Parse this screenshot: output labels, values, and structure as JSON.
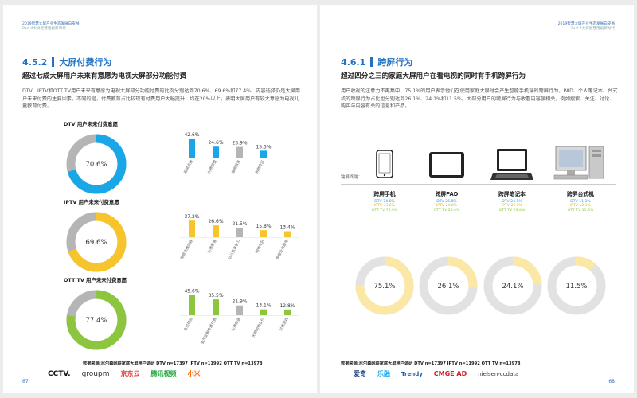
{
  "colors": {
    "blue": "#1aa7e8",
    "yellow": "#f7c52b",
    "green": "#8cc63f",
    "grey": "#b5b5b5",
    "lightgrey": "#e2e2e2",
    "paleyellow": "#fbe7a6",
    "title_blue": "#1f73c2"
  },
  "left": {
    "header_line1": "2019智慧大屏产业生态发展白皮书",
    "header_line2": "Part 4大屏智慧电视新时代",
    "section_num": "4.5.2",
    "section_title": "大屏付费行为",
    "subtitle": "超过七成大屏用户未来有意愿为电视大屏部分功能付费",
    "body": "DTV、IPTV和OTT TV用户未来有意愿为电视大屏部分功能付费的比例分别达到70.6%、69.6%和77.4%。内容选择仍是大屏用户未来付费的主要因素，不同的是，付费教育占比较现有付费用户大幅提升，均在20%以上，表明大屏用户有较大意愿为电视儿童教育付费。",
    "source": "数据来源:尼尔森网联家庭大屏用户调研  DTV n=17397  IPTV n=11992  OTT TV n=13978",
    "page_number": "67",
    "logos": [
      "CCTV.",
      "groupm",
      "京东云",
      "腾讯视频",
      "小米"
    ]
  },
  "chart_data": [
    {
      "type": "pie",
      "title": "DTV 用户未来付费意愿",
      "values": [
        70.6,
        29.4
      ],
      "label": "70.6%",
      "color": "#1aa7e8"
    },
    {
      "type": "bar",
      "categories": [
        "视频点播",
        "付费频道",
        "增值教育",
        "购物专区"
      ],
      "values": [
        42.6,
        24.6,
        23.9,
        15.5
      ],
      "labels": [
        "42.6%",
        "24.6%",
        "23.9%",
        "15.5%"
      ],
      "colors": [
        "#1aa7e8",
        "#1aa7e8",
        "#b5b5b5",
        "#1aa7e8"
      ]
    },
    {
      "type": "pie",
      "title": "IPTV 用户未来付费意愿",
      "values": [
        69.6,
        30.4
      ],
      "label": "69.6%",
      "color": "#f7c52b"
    },
    {
      "type": "bar",
      "categories": [
        "视频点播内容",
        "付费教育",
        "幼儿教育学习",
        "购物专区",
        "增值业务服务"
      ],
      "values": [
        37.2,
        26.6,
        21.5,
        15.8,
        13.4
      ],
      "labels": [
        "37.2%",
        "26.6%",
        "21.5%",
        "15.8%",
        "13.4%"
      ],
      "colors": [
        "#f7c52b",
        "#f7c52b",
        "#b5b5b5",
        "#f7c52b",
        "#f7c52b"
      ]
    },
    {
      "type": "pie",
      "title": "OTT TV 用户未来付费意愿",
      "values": [
        77.4,
        22.6
      ],
      "label": "77.4%",
      "color": "#8cc63f"
    },
    {
      "type": "bar",
      "categories": [
        "会员视频",
        "会员定制专属付费",
        "付费频道",
        "大屏购物支付",
        "付费游戏"
      ],
      "values": [
        45.6,
        35.5,
        21.9,
        13.1,
        12.8
      ],
      "labels": [
        "45.6%",
        "35.5%",
        "21.9%",
        "13.1%",
        "12.8%"
      ],
      "colors": [
        "#8cc63f",
        "#8cc63f",
        "#b5b5b5",
        "#8cc63f",
        "#8cc63f"
      ]
    },
    {
      "type": "pie",
      "values": [
        75.1,
        24.9
      ],
      "label": "75.1%",
      "color": "#fbe7a6"
    },
    {
      "type": "pie",
      "values": [
        26.1,
        73.9
      ],
      "label": "26.1%",
      "color": "#fbe7a6"
    },
    {
      "type": "pie",
      "values": [
        24.1,
        75.9
      ],
      "label": "24.1%",
      "color": "#fbe7a6"
    },
    {
      "type": "pie",
      "values": [
        11.5,
        88.5
      ],
      "label": "11.5%",
      "color": "#fbe7a6"
    }
  ],
  "right": {
    "header_line1": "2019智慧大屏产业生态发展白皮书",
    "header_line2": "Part 4大屏智慧电视新时代",
    "section_num": "4.6.1",
    "section_title": "跨屏行为",
    "subtitle": "超过四分之三的家庭大屏用户在看电视的同时有手机跨屏行为",
    "body": "用户收视的注意力不再集中，75.1%的用户表示他们在使用家庭大屏时会产生智能手机端的跨屏行为，PAD、个人笔记本、台式机的跨屏行为占比也分别达到26.1%、24.1%和11.5%。大部分用户的跨屏行为与收看内容强相关，例如搜索、关注、讨论、购买与内容有关的信息和产品。",
    "device_label": "跨屏终端：",
    "devices": [
      {
        "name": "跨屏手机",
        "dtv": "DTV  74.6%",
        "iptv": "IPTV  73.6%",
        "ott": "OTT TV  76.9%"
      },
      {
        "name": "跨屏PAD",
        "dtv": "DTV  26.8%",
        "iptv": "IPTV  24.8%",
        "ott": "OTT TV  26.4%"
      },
      {
        "name": "跨屏笔记本",
        "dtv": "DTV  24.1%",
        "iptv": "IPTV  25.0%",
        "ott": "OTT TV  23.4%"
      },
      {
        "name": "跨屏台式机",
        "dtv": "DTV  11.2%",
        "iptv": "IPTV  12.1%",
        "ott": "OTT TV  11.3%"
      }
    ],
    "source": "数据来源:尼尔森网联家庭大屏用户调研  DTV n=17397  IPTV n=11992  OTT TV n=13978",
    "page_number": "68",
    "logos": [
      "爱奇",
      "乐融",
      "Trendy",
      "CMGE AD",
      "nielsen-ccdata"
    ]
  }
}
